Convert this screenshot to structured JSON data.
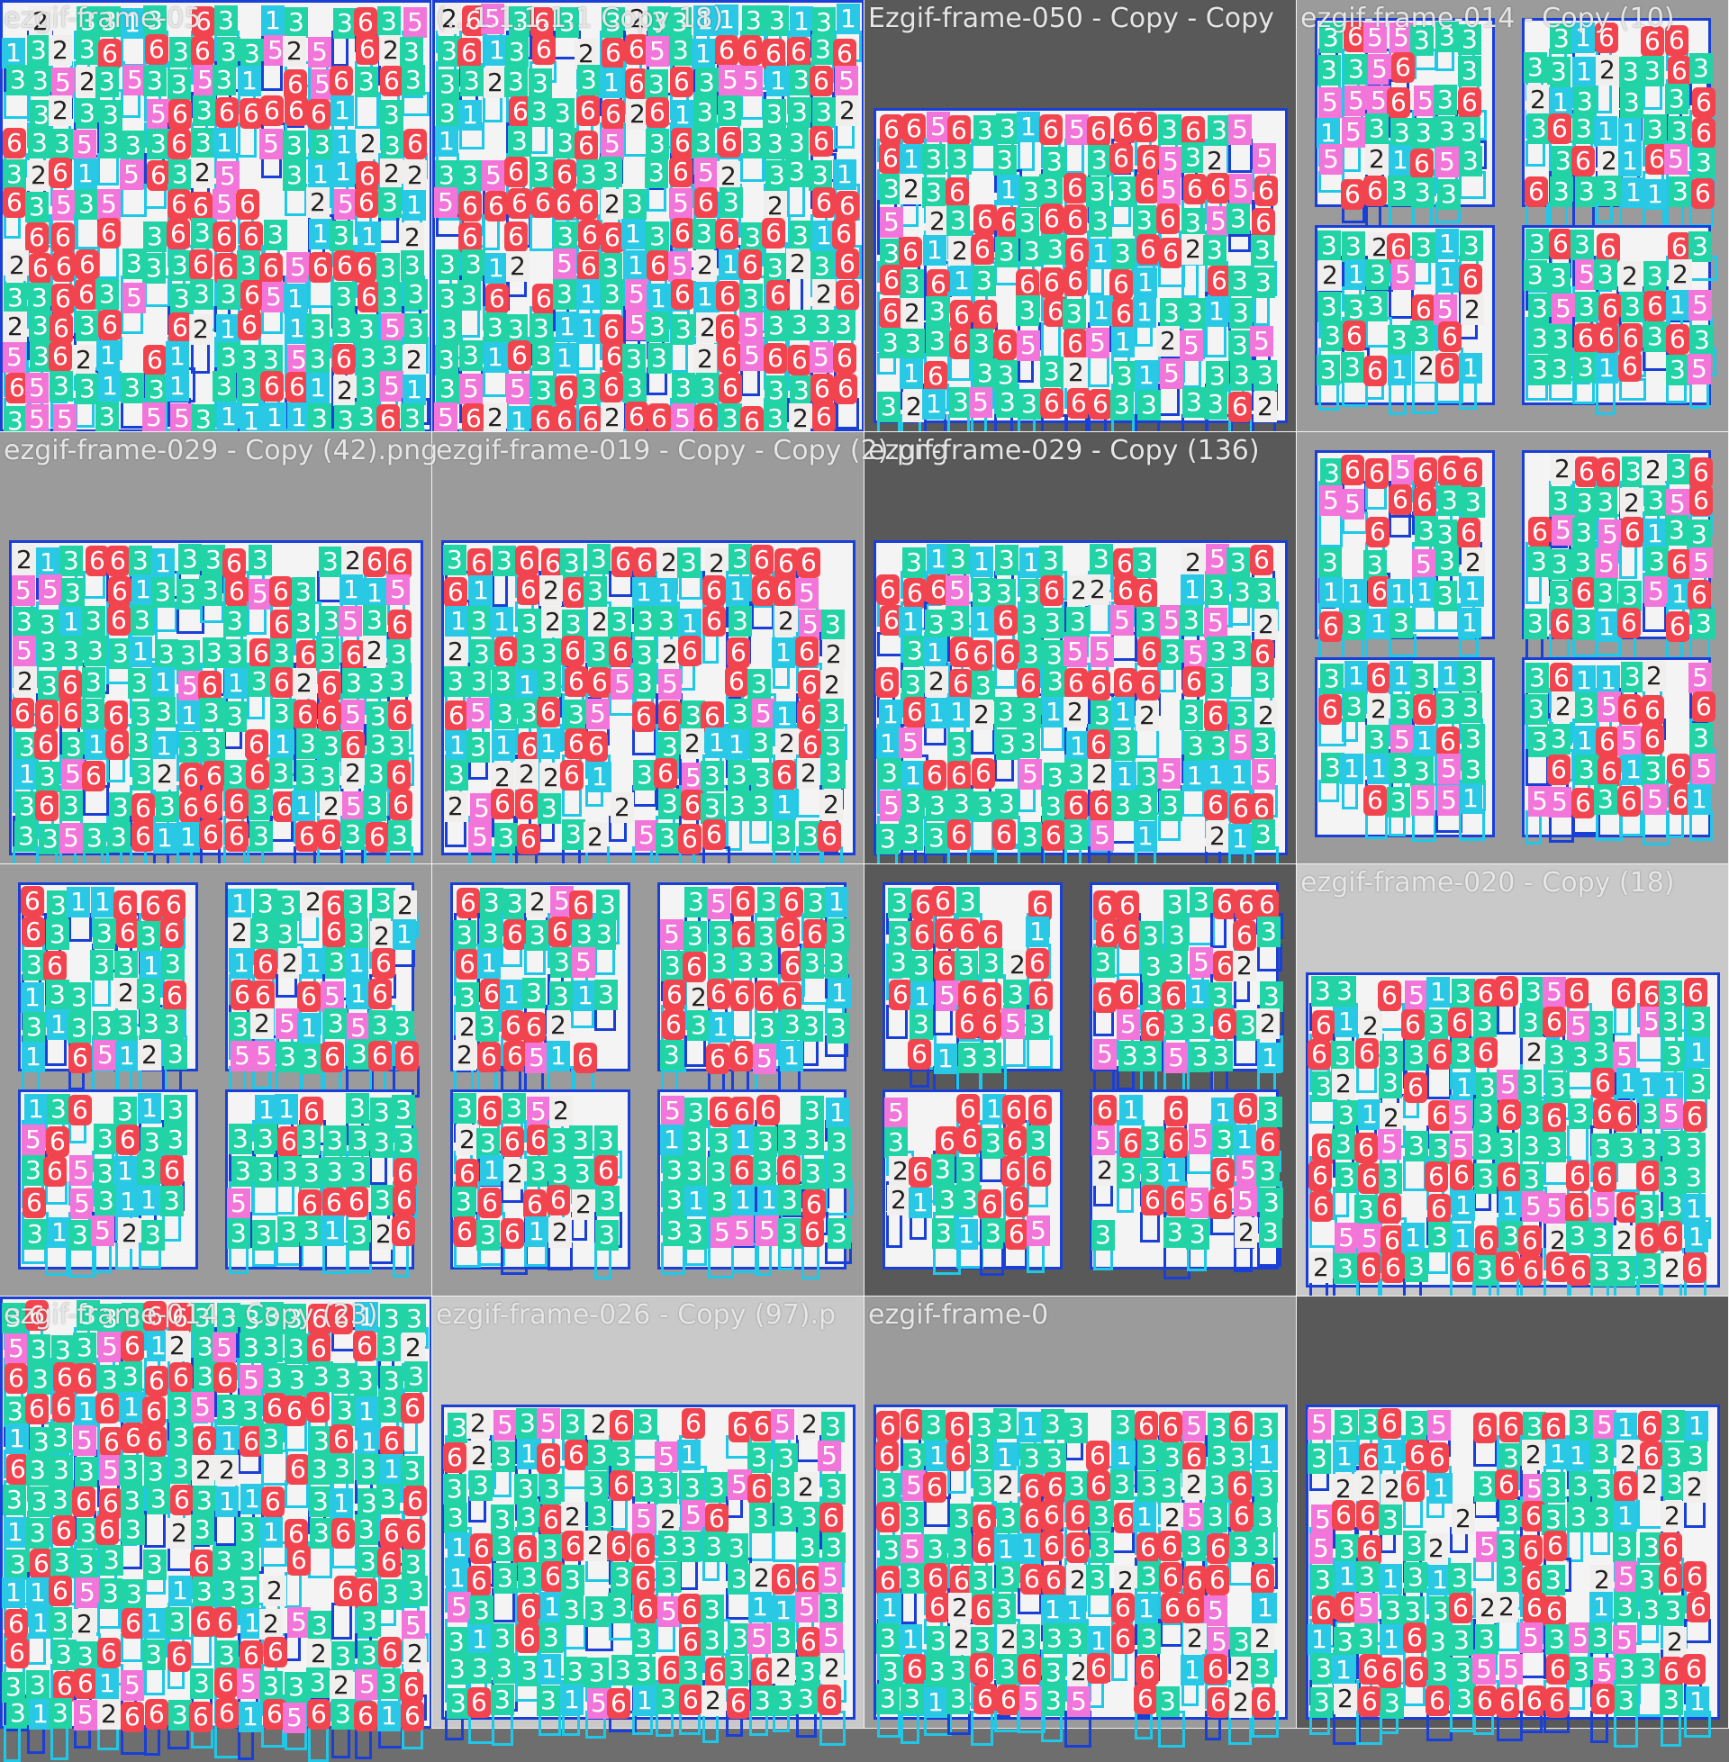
{
  "mosaic": {
    "tiles": [
      {
        "caption": "ezgif-frame-05",
        "style": "dense",
        "bg": "light"
      },
      {
        "caption": "(...1.1.1.1.1 Copy 18)",
        "style": "dense",
        "bg": "light"
      },
      {
        "caption": "Ezgif-frame-050 - Copy - Copy",
        "style": "shelf",
        "bg": "dark"
      },
      {
        "caption": "ezgif-frame-014 - Copy (10)",
        "style": "quad",
        "bg": "mid"
      },
      {
        "caption": "ezgif-frame-029 - Copy (42).png",
        "style": "shelf",
        "bg": "mid"
      },
      {
        "caption": "ezgif-frame-019 - Copy - Copy (2).png",
        "style": "shelf",
        "bg": "mid"
      },
      {
        "caption": "ezgif-frame-029 - Copy (136)",
        "style": "shelf",
        "bg": "dark"
      },
      {
        "caption": "",
        "style": "quad",
        "bg": "mid"
      },
      {
        "caption": "",
        "style": "quad",
        "bg": "mid"
      },
      {
        "caption": "",
        "style": "quad",
        "bg": "mid"
      },
      {
        "caption": "",
        "style": "quad",
        "bg": "dark"
      },
      {
        "caption": "ezgif-frame-020 - Copy (18)",
        "style": "shelf",
        "bg": "light"
      },
      {
        "caption": "ezgif-frame-014 - Copy (23)",
        "style": "dense",
        "bg": "light"
      },
      {
        "caption": "ezgif-frame-026 - Copy (97).p",
        "style": "shelf",
        "bg": "light"
      },
      {
        "caption": "ezgif-frame-0",
        "style": "shelf",
        "bg": "mid"
      },
      {
        "caption": "",
        "style": "shelf",
        "bg": "dark"
      }
    ],
    "label_classes": [
      {
        "text": "1",
        "color": "#29c9e6",
        "text_color": "#ffffff"
      },
      {
        "text": "2",
        "color": "#f1eeee",
        "text_color": "#202020"
      },
      {
        "text": "3",
        "color": "#22d3a6",
        "text_color": "#ffffff"
      },
      {
        "text": "5",
        "color": "#f276d9",
        "text_color": "#ffffff"
      },
      {
        "text": "6",
        "color": "#f2444f",
        "text_color": "#ffffff"
      }
    ],
    "colors": {
      "box_border": "#20c8e8",
      "box_border_dark": "#1a3fd6",
      "bg_light": "#c9c9c9",
      "bg_mid": "#9b9b9b",
      "bg_dark": "#595959",
      "shelf": "#ffffff"
    }
  }
}
